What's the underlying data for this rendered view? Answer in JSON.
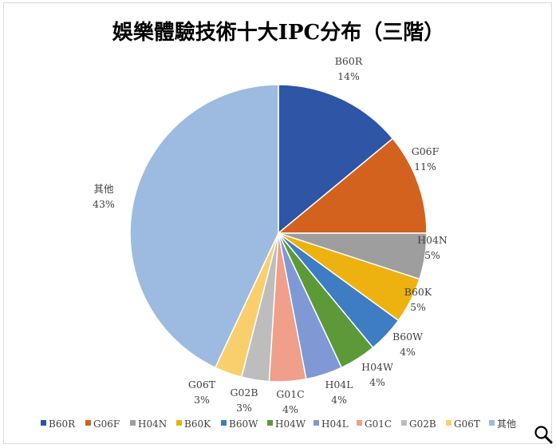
{
  "chart_data": {
    "type": "pie",
    "title": "娛樂體驗技術十大IPC分布（三階）",
    "categories": [
      "B60R",
      "G06F",
      "H04N",
      "B60K",
      "B60W",
      "H04W",
      "H04L",
      "G01C",
      "G02B",
      "G06T",
      "其他"
    ],
    "values": [
      14,
      11,
      5,
      5,
      4,
      4,
      4,
      4,
      3,
      3,
      43
    ],
    "value_labels": [
      "14%",
      "11%",
      "5%",
      "5%",
      "4%",
      "4%",
      "4%",
      "4%",
      "3%",
      "3%",
      "43%"
    ],
    "colors": [
      "#2E55A6",
      "#D3621E",
      "#9E9E9E",
      "#EDB20F",
      "#3E7DC4",
      "#5C9A39",
      "#8099D4",
      "#EF9F8A",
      "#BDBDBD",
      "#F9CF6E",
      "#9DBBE0"
    ],
    "legend_position": "bottom",
    "start_angle_deg": 0,
    "direction": "clockwise"
  },
  "toolbar": {
    "zoom_icon": "magnifier-icon"
  }
}
